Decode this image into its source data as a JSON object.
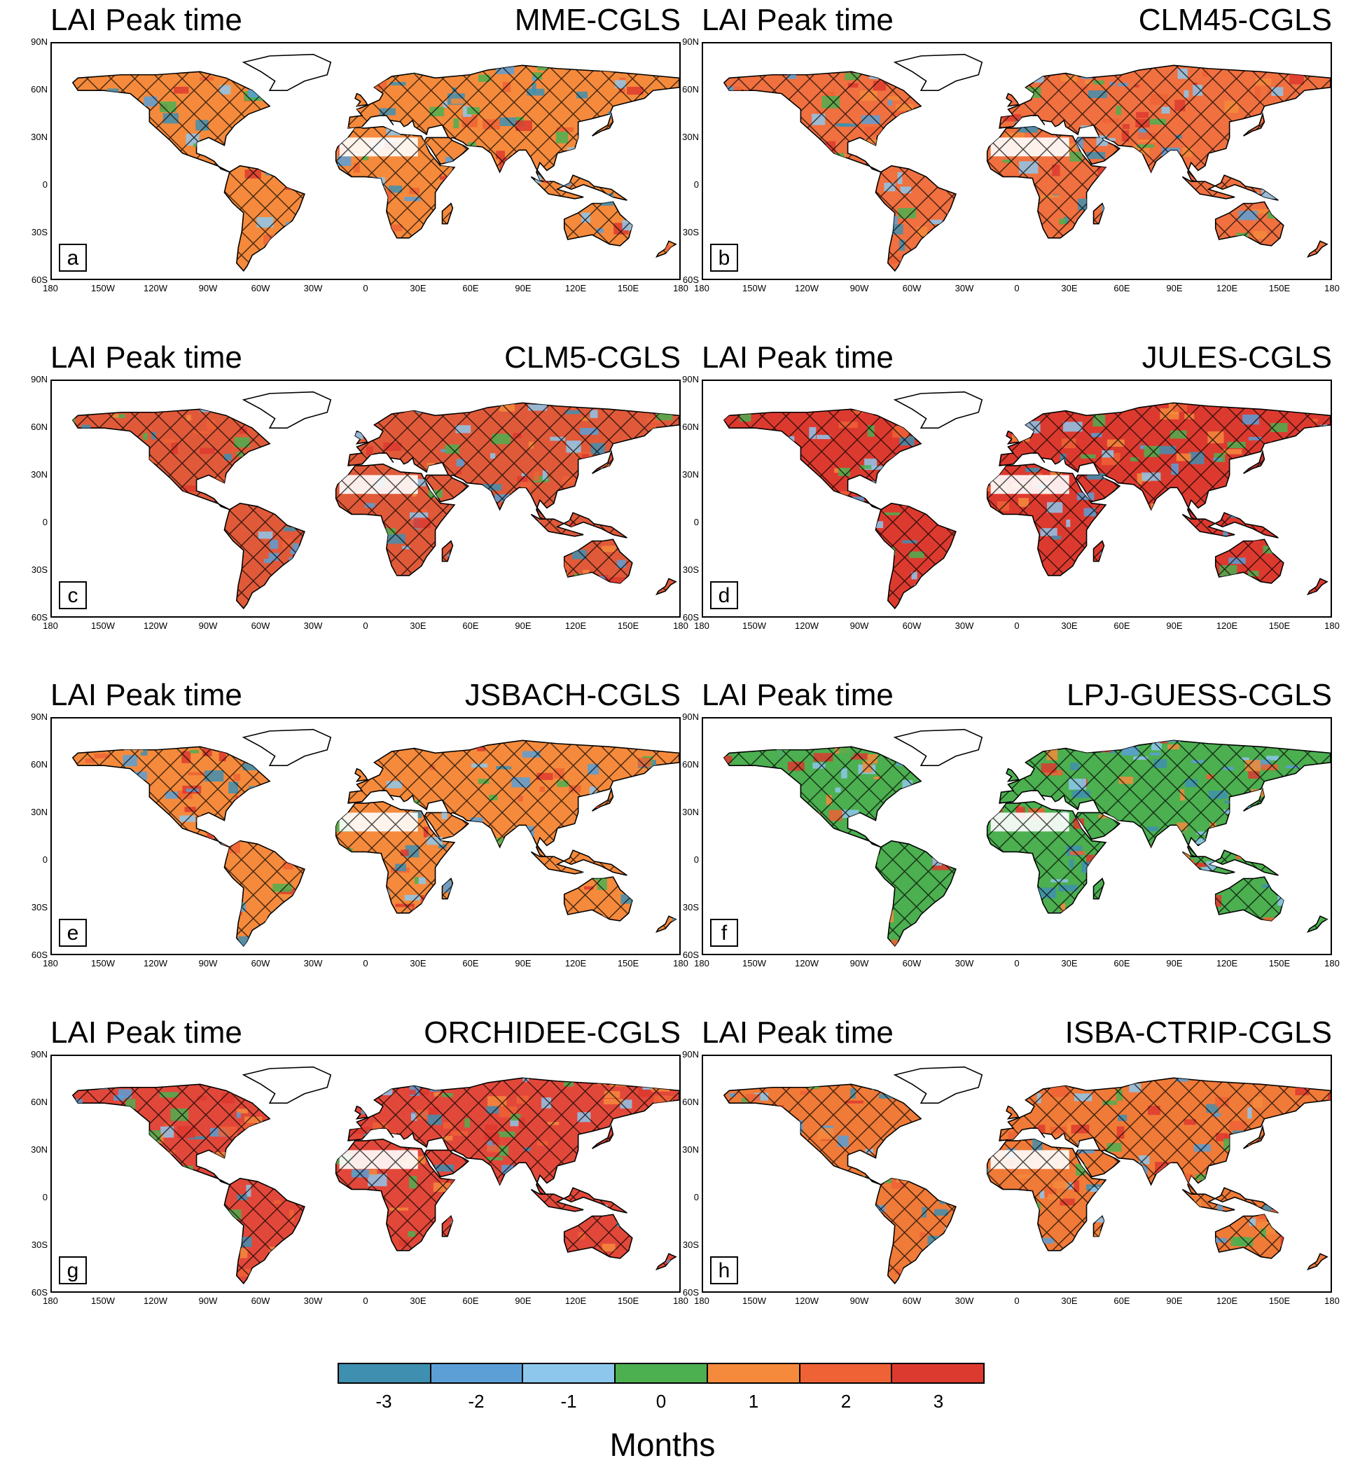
{
  "panels": [
    {
      "letter": "a",
      "title": "LAI Peak time",
      "model": "MME-CGLS",
      "dominant": "#f58a3c"
    },
    {
      "letter": "b",
      "title": "LAI Peak time",
      "model": "CLM45-CGLS",
      "dominant": "#f07040"
    },
    {
      "letter": "c",
      "title": "LAI Peak time",
      "model": "CLM5-CGLS",
      "dominant": "#e05a3a"
    },
    {
      "letter": "d",
      "title": "LAI Peak time",
      "model": "JULES-CGLS",
      "dominant": "#dd3a2f"
    },
    {
      "letter": "e",
      "title": "LAI Peak time",
      "model": "JSBACH-CGLS",
      "dominant": "#f58a3c"
    },
    {
      "letter": "f",
      "title": "LAI Peak time",
      "model": "LPJ-GUESS-CGLS",
      "dominant": "#4caf50"
    },
    {
      "letter": "g",
      "title": "LAI Peak time",
      "model": "ORCHIDEE-CGLS",
      "dominant": "#e2483a"
    },
    {
      "letter": "h",
      "title": "LAI Peak time",
      "model": "ISBA-CTRIP-CGLS",
      "dominant": "#f07a38"
    }
  ],
  "lat_labels": [
    "90N",
    "60N",
    "30N",
    "0",
    "30S",
    "60S"
  ],
  "lon_labels": [
    "180",
    "150W",
    "120W",
    "90W",
    "60W",
    "30W",
    "0",
    "30E",
    "60E",
    "90E",
    "120E",
    "150E",
    "180"
  ],
  "colorbar": {
    "colors": [
      "#3f8fb0",
      "#5b9fd6",
      "#8ec7ec",
      "#4caf50",
      "#f58a3c",
      "#ef6235",
      "#dd3a2f"
    ],
    "labels": [
      "-3",
      "-2",
      "-1",
      "0",
      "1",
      "2",
      "3"
    ],
    "units": "Months"
  }
}
